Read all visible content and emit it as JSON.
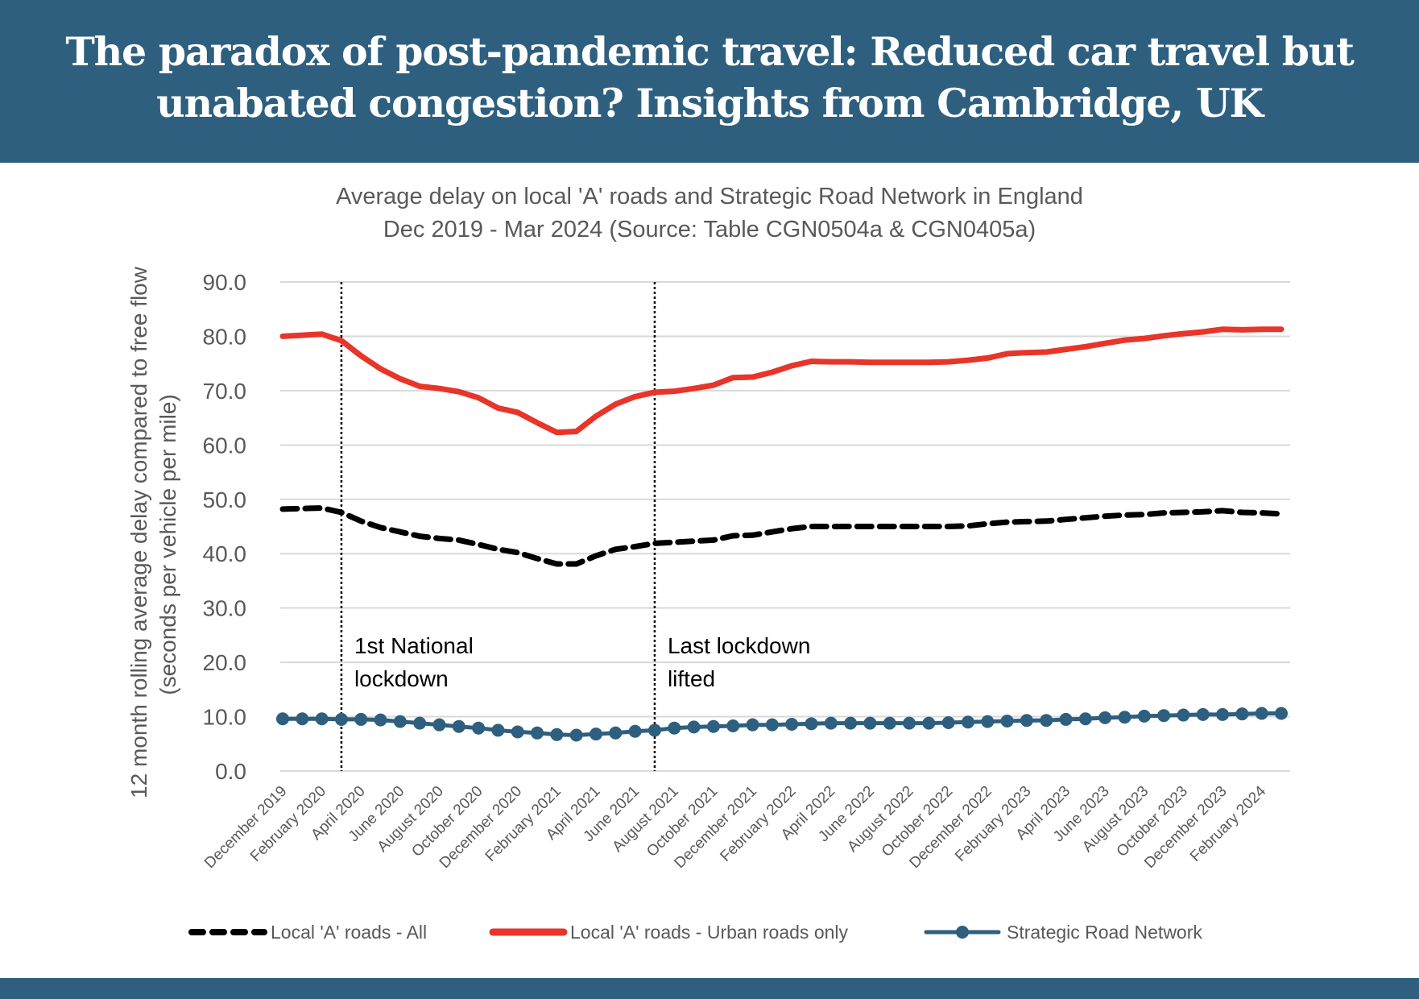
{
  "header": {
    "title_line1": "The paradox of post-pandemic travel: Reduced car travel but",
    "title_line2": "unabated congestion? Insights from Cambridge, UK"
  },
  "colors": {
    "brand": "#2e5f7f",
    "urban": "#e8352a",
    "all": "#000000",
    "srn": "#2e5f7f",
    "grid": "#d9d9d9",
    "text": "#595959"
  },
  "chart_data": {
    "type": "line",
    "title": "Average delay on local 'A' roads and Strategic Road Network in England",
    "subtitle": "Dec 2019 - Mar 2024 (Source: Table CGN0504a & CGN0405a)",
    "xlabel": "",
    "ylabel_line1": "12 month rolling average delay compared to free flow",
    "ylabel_line2": "(seconds per vehicle per mile)",
    "ylim": [
      0,
      90
    ],
    "yticks": [
      "0.0",
      "10.0",
      "20.0",
      "30.0",
      "40.0",
      "50.0",
      "60.0",
      "70.0",
      "80.0",
      "90.0"
    ],
    "ytick_values": [
      0,
      10,
      20,
      30,
      40,
      50,
      60,
      70,
      80,
      90
    ],
    "grid": true,
    "legend_position": "bottom",
    "categories": [
      "December 2019",
      "January 2020",
      "February 2020",
      "March 2020",
      "April 2020",
      "May 2020",
      "June 2020",
      "July 2020",
      "August 2020",
      "September 2020",
      "October 2020",
      "November 2020",
      "December 2020",
      "January 2021",
      "February 2021",
      "March 2021",
      "April 2021",
      "May 2021",
      "June 2021",
      "July 2021",
      "August 2021",
      "September 2021",
      "October 2021",
      "November 2021",
      "December 2021",
      "January 2022",
      "February 2022",
      "March 2022",
      "April 2022",
      "May 2022",
      "June 2022",
      "July 2022",
      "August 2022",
      "September 2022",
      "October 2022",
      "November 2022",
      "December 2022",
      "January 2023",
      "February 2023",
      "March 2023",
      "April 2023",
      "May 2023",
      "June 2023",
      "July 2023",
      "August 2023",
      "September 2023",
      "October 2023",
      "November 2023",
      "December 2023",
      "January 2024",
      "February 2024",
      "March 2024"
    ],
    "xtick_labels": [
      "December 2019",
      "February 2020",
      "April 2020",
      "June 2020",
      "August 2020",
      "October 2020",
      "December 2020",
      "February 2021",
      "April 2021",
      "June 2021",
      "August 2021",
      "October 2021",
      "December 2021",
      "February 2022",
      "April 2022",
      "June 2022",
      "August 2022",
      "October 2022",
      "December 2022",
      "February 2023",
      "April 2023",
      "June 2023",
      "August 2023",
      "October 2023",
      "December 2023",
      "February 2024"
    ],
    "series": [
      {
        "name": "Local 'A' roads - All",
        "style": "dashed",
        "values": [
          48.2,
          48.3,
          48.4,
          47.6,
          46.0,
          44.8,
          44.0,
          43.2,
          42.8,
          42.5,
          41.7,
          40.8,
          40.2,
          39.1,
          38.1,
          38.1,
          39.6,
          40.8,
          41.3,
          41.9,
          42.1,
          42.3,
          42.5,
          43.3,
          43.4,
          44.0,
          44.6,
          45.0,
          45.0,
          45.0,
          45.0,
          45.0,
          45.0,
          45.0,
          45.0,
          45.1,
          45.5,
          45.8,
          45.9,
          46.0,
          46.3,
          46.6,
          46.9,
          47.1,
          47.2,
          47.5,
          47.6,
          47.7,
          47.9,
          47.6,
          47.5,
          47.3
        ]
      },
      {
        "name": "Local 'A' roads - Urban roads only",
        "style": "solid",
        "values": [
          80.0,
          80.2,
          80.4,
          79.2,
          76.4,
          74.0,
          72.2,
          70.8,
          70.4,
          69.8,
          68.7,
          66.8,
          66.0,
          64.1,
          62.3,
          62.5,
          65.3,
          67.5,
          68.9,
          69.7,
          69.9,
          70.4,
          71.0,
          72.4,
          72.5,
          73.4,
          74.6,
          75.4,
          75.3,
          75.3,
          75.2,
          75.2,
          75.2,
          75.2,
          75.3,
          75.6,
          76.0,
          76.8,
          77.0,
          77.1,
          77.6,
          78.1,
          78.7,
          79.3,
          79.6,
          80.1,
          80.5,
          80.8,
          81.3,
          81.2,
          81.3,
          81.3
        ]
      },
      {
        "name": "Strategic Road Network",
        "style": "markers",
        "values": [
          9.6,
          9.6,
          9.6,
          9.5,
          9.5,
          9.4,
          9.1,
          8.8,
          8.5,
          8.2,
          7.9,
          7.5,
          7.2,
          7.0,
          6.7,
          6.6,
          6.8,
          7.0,
          7.3,
          7.5,
          7.9,
          8.1,
          8.2,
          8.3,
          8.5,
          8.5,
          8.6,
          8.7,
          8.8,
          8.8,
          8.8,
          8.8,
          8.8,
          8.8,
          8.9,
          9.0,
          9.1,
          9.2,
          9.3,
          9.3,
          9.5,
          9.6,
          9.8,
          9.9,
          10.1,
          10.2,
          10.3,
          10.4,
          10.4,
          10.5,
          10.6,
          10.6
        ]
      }
    ],
    "annotations": [
      {
        "category": "March 2020",
        "line1": "1st National",
        "line2": "lockdown"
      },
      {
        "category": "July 2021",
        "line1": "Last lockdown",
        "line2": "lifted"
      }
    ]
  }
}
